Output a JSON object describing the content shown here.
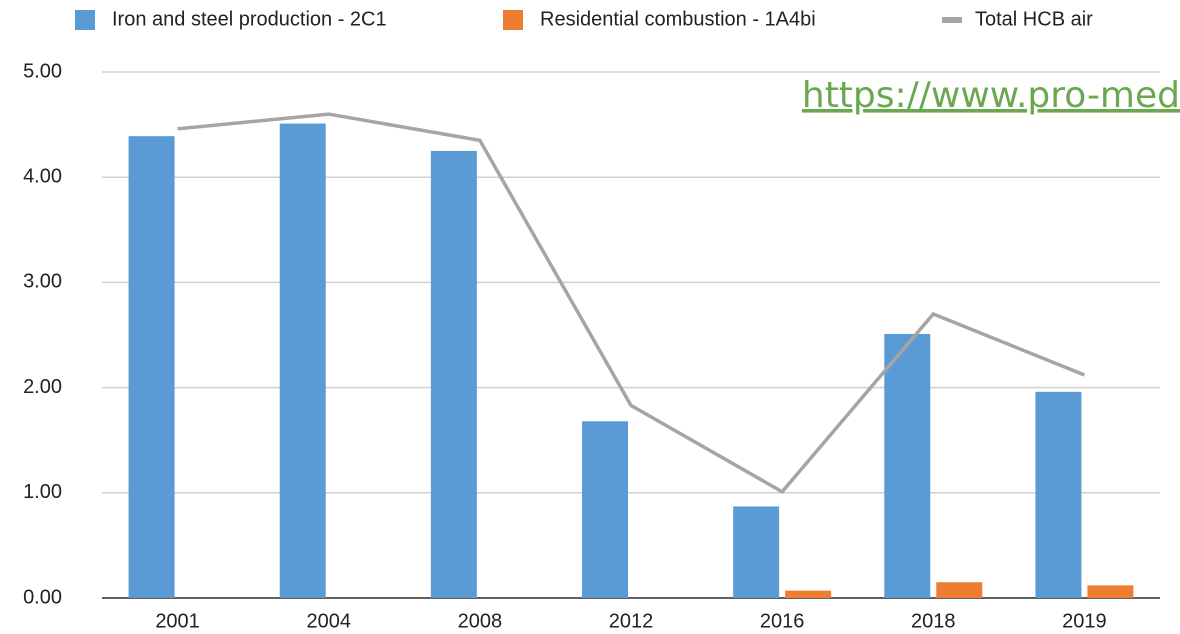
{
  "chart_data": {
    "type": "bar",
    "categories": [
      "2001",
      "2004",
      "2008",
      "2012",
      "2016",
      "2018",
      "2019"
    ],
    "series": [
      {
        "name": "Iron and steel production - 2C1",
        "color": "#5b9bd5",
        "type": "bar",
        "values": [
          4.39,
          4.51,
          4.25,
          1.68,
          0.87,
          2.51,
          1.96
        ]
      },
      {
        "name": "Residential combustion - 1A4bi",
        "color": "#ed7d31",
        "type": "bar",
        "values": [
          0,
          0,
          0,
          0,
          0.07,
          0.15,
          0.12
        ]
      },
      {
        "name": "Total HCB air",
        "color": "#a5a5a5",
        "type": "line",
        "values": [
          4.46,
          4.6,
          4.35,
          1.83,
          1.01,
          2.7,
          2.12
        ]
      }
    ],
    "ylim": [
      0,
      5
    ],
    "yticks": [
      {
        "value": 0,
        "label": "0.00"
      },
      {
        "value": 1,
        "label": "1.00"
      },
      {
        "value": 2,
        "label": "2.00"
      },
      {
        "value": 3,
        "label": "3.00"
      },
      {
        "value": 4,
        "label": "4.00"
      },
      {
        "value": 5,
        "label": "5.00"
      }
    ],
    "grid": true,
    "annotation": "https://www.pro-med"
  }
}
